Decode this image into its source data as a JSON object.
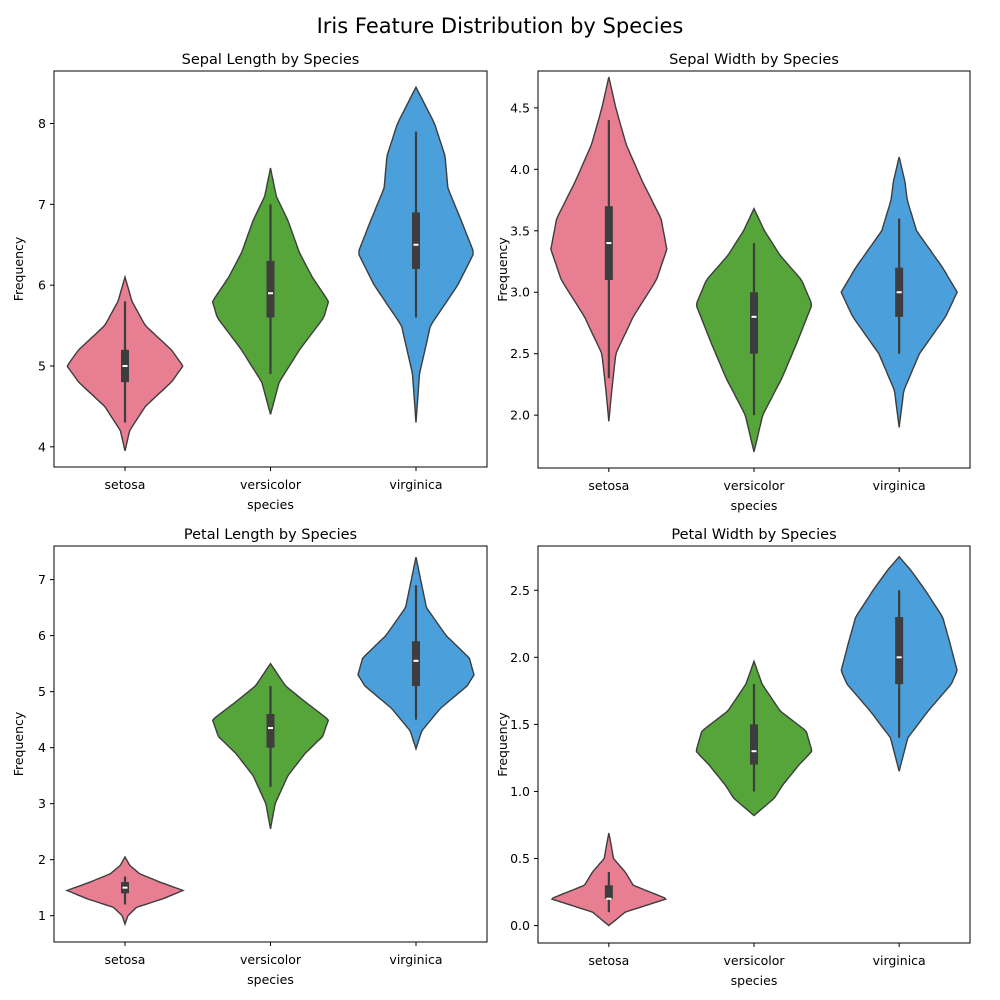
{
  "figure": {
    "suptitle": "Iris Feature Distribution by Species"
  },
  "colors": {
    "setosa": "#e87e91",
    "versicolor": "#55a53a",
    "virginica": "#4b9fda",
    "outline": "#3d3d3d",
    "box": "#3d3d3d"
  },
  "chart_data": [
    {
      "type": "violin",
      "title": "Sepal Length by Species",
      "xlabel": "species",
      "ylabel": "Frequency",
      "categories": [
        "setosa",
        "versicolor",
        "virginica"
      ],
      "yticks": [
        "4",
        "5",
        "6",
        "7",
        "8"
      ],
      "ylim": [
        3.75,
        8.65
      ],
      "series": [
        {
          "category": "setosa",
          "min": 4.3,
          "q1": 4.8,
          "median": 5.0,
          "q3": 5.2,
          "max": 5.8,
          "kde_min": 3.95,
          "kde_max": 6.1,
          "profile": [
            [
              3.95,
              0
            ],
            [
              4.2,
              0.08
            ],
            [
              4.5,
              0.35
            ],
            [
              4.8,
              0.8
            ],
            [
              5.0,
              1.0
            ],
            [
              5.2,
              0.8
            ],
            [
              5.5,
              0.35
            ],
            [
              5.8,
              0.12
            ],
            [
              6.1,
              0
            ]
          ]
        },
        {
          "category": "versicolor",
          "min": 4.9,
          "q1": 5.6,
          "median": 5.9,
          "q3": 6.3,
          "max": 7.0,
          "kde_min": 4.4,
          "kde_max": 7.45,
          "profile": [
            [
              4.4,
              0
            ],
            [
              4.8,
              0.15
            ],
            [
              5.2,
              0.5
            ],
            [
              5.6,
              0.92
            ],
            [
              5.8,
              1.0
            ],
            [
              6.1,
              0.72
            ],
            [
              6.4,
              0.5
            ],
            [
              6.8,
              0.3
            ],
            [
              7.1,
              0.1
            ],
            [
              7.45,
              0
            ]
          ]
        },
        {
          "category": "virginica",
          "min": 5.6,
          "q1": 6.2,
          "median": 6.5,
          "q3": 6.9,
          "max": 7.9,
          "kde_min": 4.3,
          "kde_max": 8.45,
          "profile": [
            [
              4.3,
              0
            ],
            [
              4.9,
              0.06
            ],
            [
              5.5,
              0.25
            ],
            [
              6.0,
              0.72
            ],
            [
              6.4,
              1.0
            ],
            [
              6.8,
              0.78
            ],
            [
              7.2,
              0.55
            ],
            [
              7.6,
              0.5
            ],
            [
              8.0,
              0.32
            ],
            [
              8.45,
              0
            ]
          ]
        }
      ]
    },
    {
      "type": "violin",
      "title": "Sepal Width by Species",
      "xlabel": "species",
      "ylabel": "Frequency",
      "categories": [
        "setosa",
        "versicolor",
        "virginica"
      ],
      "yticks": [
        "2.0",
        "2.5",
        "3.0",
        "3.5",
        "4.0",
        "4.5"
      ],
      "ylim": [
        1.57,
        4.8
      ],
      "series": [
        {
          "category": "setosa",
          "min": 2.3,
          "q1": 3.1,
          "median": 3.4,
          "q3": 3.7,
          "max": 4.4,
          "kde_min": 1.95,
          "kde_max": 4.75,
          "profile": [
            [
              1.95,
              0
            ],
            [
              2.2,
              0.05
            ],
            [
              2.5,
              0.12
            ],
            [
              2.8,
              0.42
            ],
            [
              3.1,
              0.82
            ],
            [
              3.35,
              1.0
            ],
            [
              3.6,
              0.9
            ],
            [
              3.9,
              0.58
            ],
            [
              4.2,
              0.3
            ],
            [
              4.5,
              0.12
            ],
            [
              4.75,
              0
            ]
          ]
        },
        {
          "category": "versicolor",
          "min": 2.0,
          "q1": 2.5,
          "median": 2.8,
          "q3": 3.0,
          "max": 3.4,
          "kde_min": 1.7,
          "kde_max": 3.68,
          "profile": [
            [
              1.7,
              0
            ],
            [
              2.0,
              0.15
            ],
            [
              2.3,
              0.48
            ],
            [
              2.6,
              0.75
            ],
            [
              2.9,
              1.0
            ],
            [
              3.1,
              0.82
            ],
            [
              3.3,
              0.45
            ],
            [
              3.5,
              0.18
            ],
            [
              3.68,
              0
            ]
          ]
        },
        {
          "category": "virginica",
          "min": 2.5,
          "q1": 2.8,
          "median": 3.0,
          "q3": 3.2,
          "max": 3.6,
          "kde_min": 1.9,
          "kde_max": 4.1,
          "profile": [
            [
              1.9,
              0
            ],
            [
              2.2,
              0.08
            ],
            [
              2.5,
              0.35
            ],
            [
              2.8,
              0.8
            ],
            [
              3.0,
              1.0
            ],
            [
              3.2,
              0.75
            ],
            [
              3.5,
              0.3
            ],
            [
              3.75,
              0.14
            ],
            [
              3.9,
              0.1
            ],
            [
              4.1,
              0
            ]
          ]
        }
      ]
    },
    {
      "type": "violin",
      "title": "Petal Length by Species",
      "xlabel": "species",
      "ylabel": "Frequency",
      "categories": [
        "setosa",
        "versicolor",
        "virginica"
      ],
      "yticks": [
        "1",
        "2",
        "3",
        "4",
        "5",
        "6",
        "7"
      ],
      "ylim": [
        0.53,
        7.6
      ],
      "series": [
        {
          "category": "setosa",
          "min": 1.2,
          "q1": 1.4,
          "median": 1.5,
          "q3": 1.6,
          "max": 1.7,
          "kde_min": 0.85,
          "kde_max": 2.05,
          "profile": [
            [
              0.85,
              0
            ],
            [
              1.0,
              0.05
            ],
            [
              1.15,
              0.2
            ],
            [
              1.3,
              0.65
            ],
            [
              1.45,
              1.0
            ],
            [
              1.6,
              0.6
            ],
            [
              1.75,
              0.25
            ],
            [
              1.9,
              0.08
            ],
            [
              2.05,
              0
            ]
          ]
        },
        {
          "category": "versicolor",
          "min": 3.3,
          "q1": 4.0,
          "median": 4.35,
          "q3": 4.6,
          "max": 5.1,
          "kde_min": 2.55,
          "kde_max": 5.5,
          "profile": [
            [
              2.55,
              0
            ],
            [
              3.0,
              0.08
            ],
            [
              3.5,
              0.3
            ],
            [
              3.9,
              0.6
            ],
            [
              4.2,
              0.9
            ],
            [
              4.5,
              1.0
            ],
            [
              4.8,
              0.62
            ],
            [
              5.1,
              0.26
            ],
            [
              5.5,
              0
            ]
          ]
        },
        {
          "category": "virginica",
          "min": 4.5,
          "q1": 5.1,
          "median": 5.55,
          "q3": 5.9,
          "max": 6.9,
          "kde_min": 3.98,
          "kde_max": 7.4,
          "profile": [
            [
              3.98,
              0
            ],
            [
              4.3,
              0.1
            ],
            [
              4.7,
              0.42
            ],
            [
              5.1,
              0.88
            ],
            [
              5.3,
              1.0
            ],
            [
              5.6,
              0.92
            ],
            [
              6.0,
              0.52
            ],
            [
              6.5,
              0.18
            ],
            [
              7.0,
              0.08
            ],
            [
              7.4,
              0
            ]
          ]
        }
      ]
    },
    {
      "type": "violin",
      "title": "Petal Width by Species",
      "xlabel": "species",
      "ylabel": "Frequency",
      "categories": [
        "setosa",
        "versicolor",
        "virginica"
      ],
      "yticks": [
        "0.0",
        "0.5",
        "1.0",
        "1.5",
        "2.0",
        "2.5"
      ],
      "ylim": [
        -0.13,
        2.83
      ],
      "series": [
        {
          "category": "setosa",
          "min": 0.1,
          "q1": 0.2,
          "median": 0.2,
          "q3": 0.3,
          "max": 0.4,
          "kde_min": 0.0,
          "kde_max": 0.69,
          "profile": [
            [
              0.0,
              0
            ],
            [
              0.1,
              0.28
            ],
            [
              0.2,
              1.0
            ],
            [
              0.3,
              0.42
            ],
            [
              0.4,
              0.28
            ],
            [
              0.5,
              0.08
            ],
            [
              0.6,
              0.04
            ],
            [
              0.69,
              0
            ]
          ]
        },
        {
          "category": "versicolor",
          "min": 1.0,
          "q1": 1.2,
          "median": 1.3,
          "q3": 1.5,
          "max": 1.8,
          "kde_min": 0.82,
          "kde_max": 1.97,
          "profile": [
            [
              0.82,
              0
            ],
            [
              0.95,
              0.35
            ],
            [
              1.05,
              0.5
            ],
            [
              1.2,
              0.78
            ],
            [
              1.3,
              1.0
            ],
            [
              1.45,
              0.9
            ],
            [
              1.6,
              0.45
            ],
            [
              1.8,
              0.14
            ],
            [
              1.97,
              0
            ]
          ]
        },
        {
          "category": "virginica",
          "min": 1.4,
          "q1": 1.8,
          "median": 2.0,
          "q3": 2.3,
          "max": 2.5,
          "kde_min": 1.15,
          "kde_max": 2.75,
          "profile": [
            [
              1.15,
              0
            ],
            [
              1.4,
              0.15
            ],
            [
              1.6,
              0.5
            ],
            [
              1.8,
              0.9
            ],
            [
              1.9,
              1.0
            ],
            [
              2.1,
              0.88
            ],
            [
              2.3,
              0.75
            ],
            [
              2.5,
              0.45
            ],
            [
              2.65,
              0.2
            ],
            [
              2.75,
              0
            ]
          ]
        }
      ]
    }
  ]
}
